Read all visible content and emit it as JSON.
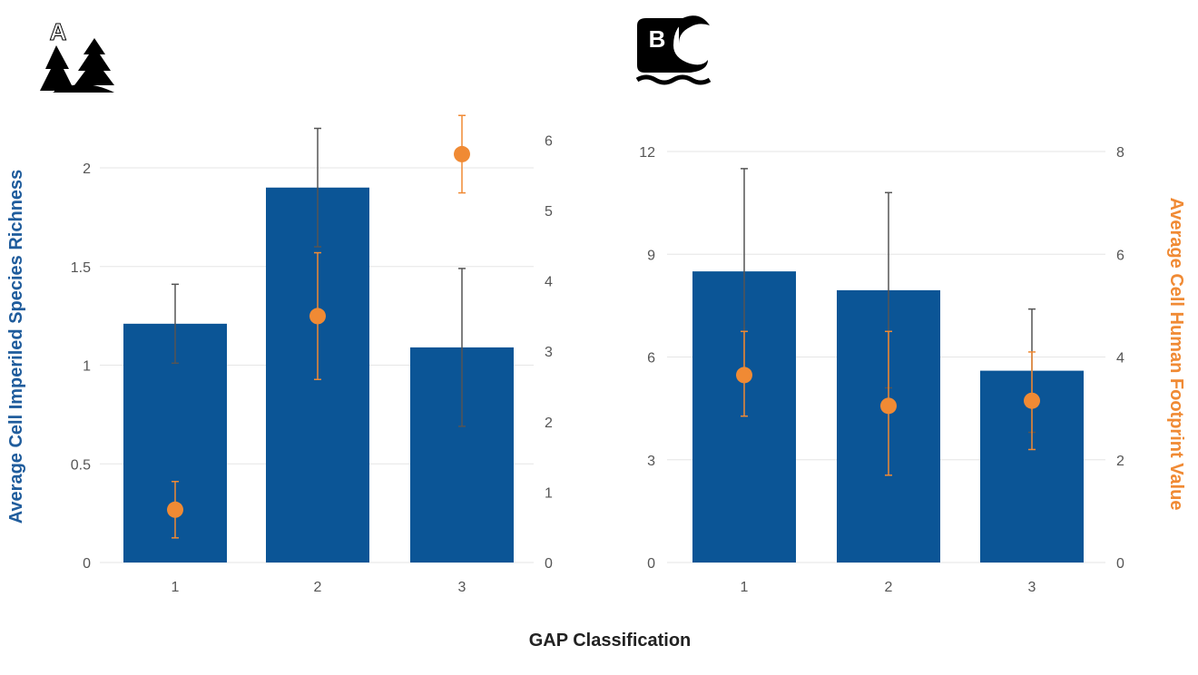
{
  "x_axis_label": "GAP Classification",
  "left_axis_label": "Average Cell Imperiled Species Richness",
  "right_axis_label": "Average Cell Human Footprint Value",
  "colors": {
    "bar": "#0b5596",
    "point": "#f08a34",
    "bar_error": "#555555",
    "point_error": "#f08a34",
    "grid": "#e6e6e6",
    "left_label": "#1f5c9c",
    "right_label": "#f08a34"
  },
  "chart_data": [
    {
      "type": "bar",
      "panel_label": "A",
      "icon": "forest-icon",
      "categories": [
        "1",
        "2",
        "3"
      ],
      "left_axis": {
        "ylim": [
          0,
          2.2
        ],
        "ticks": [
          0,
          0.5,
          1,
          1.5,
          2
        ],
        "tick_labels": [
          "0",
          "0.5",
          "1",
          "1.5",
          "2"
        ]
      },
      "right_axis": {
        "ylim": [
          0,
          6.35
        ],
        "ticks": [
          0,
          1,
          2,
          3,
          4,
          5,
          6
        ],
        "tick_labels": [
          "0",
          "1",
          "2",
          "3",
          "4",
          "5",
          "6"
        ]
      },
      "bars": {
        "values": [
          1.21,
          1.9,
          1.09
        ],
        "err_low": [
          1.01,
          1.6,
          0.69
        ],
        "err_high": [
          1.41,
          2.2,
          1.49
        ]
      },
      "points": {
        "values": [
          0.75,
          3.5,
          5.8
        ],
        "err_low": [
          0.35,
          2.6,
          5.25
        ],
        "err_high": [
          1.15,
          4.4,
          6.35
        ]
      },
      "grid": true
    },
    {
      "type": "bar",
      "panel_label": "B",
      "icon": "wave-icon",
      "categories": [
        "1",
        "2",
        "3"
      ],
      "left_axis": {
        "ylim": [
          0,
          12
        ],
        "ticks": [
          0,
          3,
          6,
          9,
          12
        ],
        "tick_labels": [
          "0",
          "3",
          "6",
          "9",
          "12"
        ]
      },
      "right_axis": {
        "ylim": [
          0,
          8
        ],
        "ticks": [
          0,
          2,
          4,
          6,
          8
        ],
        "tick_labels": [
          "0",
          "2",
          "4",
          "6",
          "8"
        ]
      },
      "bars": {
        "values": [
          8.5,
          7.95,
          5.6
        ],
        "err_low": [
          5.5,
          5.1,
          3.8
        ],
        "err_high": [
          11.5,
          10.8,
          7.4
        ]
      },
      "points": {
        "values": [
          3.65,
          3.05,
          3.15
        ],
        "err_low": [
          2.85,
          1.7,
          2.2
        ],
        "err_high": [
          4.5,
          4.5,
          4.1
        ]
      },
      "grid": true
    }
  ]
}
